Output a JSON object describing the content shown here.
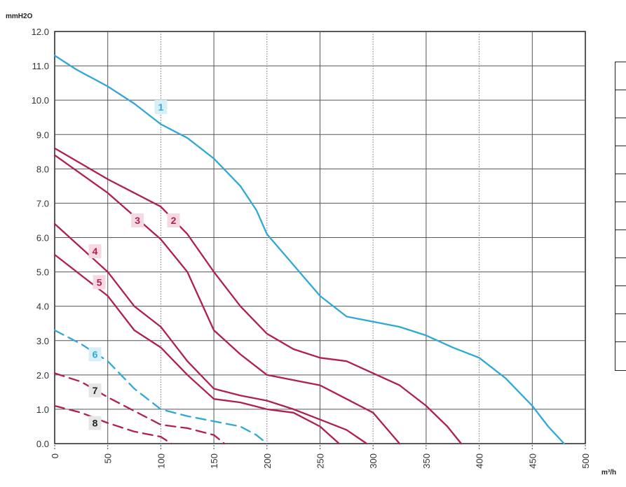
{
  "chart_data": {
    "type": "line",
    "ylabel": "mmH2O",
    "xlabel": "m³/h",
    "xlim": [
      0,
      500
    ],
    "ylim": [
      0,
      12
    ],
    "x_ticks": [
      0,
      50,
      100,
      150,
      200,
      250,
      300,
      350,
      400,
      450,
      500
    ],
    "y_ticks": [
      "0.0",
      "1.0",
      "2.0",
      "3.0",
      "4.0",
      "5.0",
      "6.0",
      "7.0",
      "8.0",
      "9.0",
      "10.0",
      "11.0",
      "12.0"
    ],
    "grid": true,
    "series": [
      {
        "name": "1",
        "color": "#2fa8d8",
        "dash": false,
        "label_at": [
          100,
          9.8
        ],
        "points": [
          [
            0,
            11.3
          ],
          [
            20,
            10.9
          ],
          [
            50,
            10.4
          ],
          [
            75,
            9.9
          ],
          [
            100,
            9.3
          ],
          [
            125,
            8.9
          ],
          [
            150,
            8.3
          ],
          [
            175,
            7.5
          ],
          [
            190,
            6.8
          ],
          [
            200,
            6.1
          ],
          [
            225,
            5.2
          ],
          [
            250,
            4.3
          ],
          [
            275,
            3.7
          ],
          [
            300,
            3.55
          ],
          [
            325,
            3.4
          ],
          [
            350,
            3.15
          ],
          [
            375,
            2.8
          ],
          [
            400,
            2.5
          ],
          [
            425,
            1.9
          ],
          [
            450,
            1.1
          ],
          [
            465,
            0.5
          ],
          [
            480,
            0
          ]
        ]
      },
      {
        "name": "2",
        "color": "#b0204e",
        "dash": false,
        "label_at": [
          112,
          6.5
        ],
        "points": [
          [
            0,
            8.6
          ],
          [
            50,
            7.7
          ],
          [
            100,
            6.9
          ],
          [
            125,
            6.1
          ],
          [
            150,
            5.0
          ],
          [
            175,
            4.0
          ],
          [
            200,
            3.2
          ],
          [
            225,
            2.75
          ],
          [
            250,
            2.5
          ],
          [
            275,
            2.4
          ],
          [
            300,
            2.05
          ],
          [
            325,
            1.7
          ],
          [
            350,
            1.1
          ],
          [
            370,
            0.5
          ],
          [
            383,
            0
          ]
        ]
      },
      {
        "name": "3",
        "color": "#b0204e",
        "dash": false,
        "label_at": [
          78,
          6.5
        ],
        "points": [
          [
            0,
            8.4
          ],
          [
            50,
            7.3
          ],
          [
            100,
            5.95
          ],
          [
            125,
            5.0
          ],
          [
            150,
            3.3
          ],
          [
            175,
            2.6
          ],
          [
            200,
            2.0
          ],
          [
            225,
            1.85
          ],
          [
            250,
            1.7
          ],
          [
            275,
            1.3
          ],
          [
            300,
            0.9
          ],
          [
            325,
            0
          ]
        ]
      },
      {
        "name": "4",
        "color": "#b0204e",
        "dash": false,
        "label_at": [
          38,
          5.6
        ],
        "points": [
          [
            0,
            6.4
          ],
          [
            50,
            5.0
          ],
          [
            75,
            4.0
          ],
          [
            100,
            3.4
          ],
          [
            125,
            2.4
          ],
          [
            150,
            1.6
          ],
          [
            175,
            1.4
          ],
          [
            200,
            1.25
          ],
          [
            225,
            1.0
          ],
          [
            250,
            0.7
          ],
          [
            275,
            0.4
          ],
          [
            294,
            0
          ]
        ]
      },
      {
        "name": "5",
        "color": "#b0204e",
        "dash": false,
        "label_at": [
          42,
          4.7
        ],
        "points": [
          [
            0,
            5.5
          ],
          [
            50,
            4.3
          ],
          [
            75,
            3.3
          ],
          [
            100,
            2.8
          ],
          [
            125,
            2.0
          ],
          [
            150,
            1.3
          ],
          [
            175,
            1.2
          ],
          [
            200,
            1.0
          ],
          [
            225,
            0.9
          ],
          [
            250,
            0.5
          ],
          [
            268,
            0
          ]
        ]
      },
      {
        "name": "6",
        "color": "#2fa8d8",
        "dash": true,
        "label_at": [
          38,
          2.6
        ],
        "points": [
          [
            0,
            3.3
          ],
          [
            25,
            2.9
          ],
          [
            50,
            2.4
          ],
          [
            75,
            1.6
          ],
          [
            100,
            1.0
          ],
          [
            125,
            0.8
          ],
          [
            150,
            0.65
          ],
          [
            175,
            0.5
          ],
          [
            190,
            0.25
          ],
          [
            200,
            0
          ]
        ]
      },
      {
        "name": "7",
        "color": "#b0204e",
        "dash": true,
        "label_at": [
          38,
          1.55
        ],
        "points": [
          [
            0,
            2.05
          ],
          [
            25,
            1.8
          ],
          [
            50,
            1.35
          ],
          [
            75,
            0.95
          ],
          [
            100,
            0.55
          ],
          [
            125,
            0.45
          ],
          [
            150,
            0.25
          ],
          [
            160,
            0
          ]
        ]
      },
      {
        "name": "8",
        "color": "#b0204e",
        "dash": true,
        "label_at": [
          38,
          0.6
        ],
        "points": [
          [
            0,
            1.1
          ],
          [
            25,
            0.9
          ],
          [
            50,
            0.6
          ],
          [
            75,
            0.35
          ],
          [
            100,
            0.2
          ],
          [
            110,
            0
          ]
        ]
      }
    ]
  }
}
